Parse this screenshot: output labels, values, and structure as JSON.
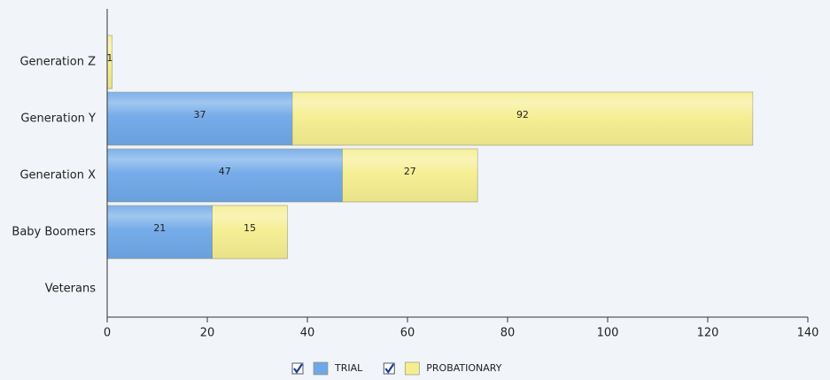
{
  "chart_data": {
    "type": "stacked-bar-horizontal",
    "categories": [
      "Generation Z",
      "Generation Y",
      "Generation X",
      "Baby Boomers",
      "Veterans"
    ],
    "series": [
      {
        "name": "TRIAL",
        "color": "#6fa8e8",
        "values": [
          null,
          37,
          47,
          21,
          null
        ]
      },
      {
        "name": "PROBATIONARY",
        "color": "#f5ee90",
        "values": [
          1,
          92,
          27,
          15,
          null
        ]
      }
    ],
    "xlim": [
      0,
      140
    ],
    "xticks": [
      0,
      20,
      40,
      60,
      80,
      100,
      120,
      140
    ],
    "legend": "bottom"
  }
}
